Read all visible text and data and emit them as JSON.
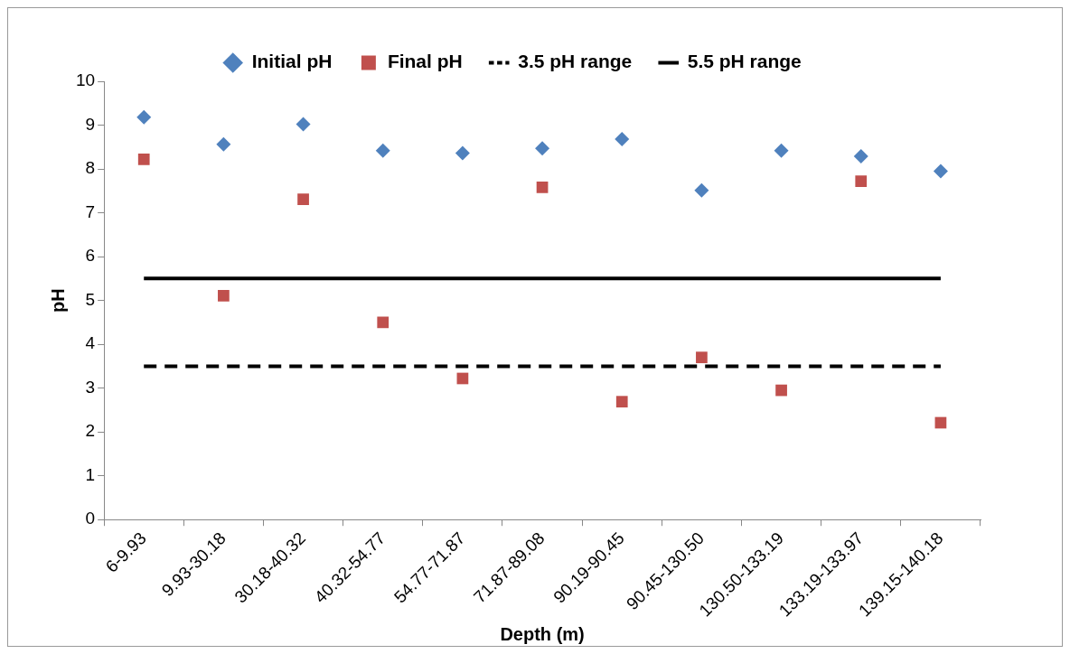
{
  "chart_data": {
    "type": "scatter",
    "xlabel": "Depth (m)",
    "ylabel": "pH",
    "categories": [
      "6-9.93",
      "9.93-30.18",
      "30.18-40.32",
      "40.32-54.77",
      "54.77-71.87",
      "71.87-89.08",
      "90.19-90.45",
      "90.45-130.50",
      "130.50-133.19",
      "133.19-133.97",
      "139.15-140.18"
    ],
    "series": [
      {
        "name": "Initial pH",
        "marker": "diamond",
        "color": "#4f81bd",
        "values": [
          9.18,
          8.56,
          9.02,
          8.42,
          8.36,
          8.47,
          8.68,
          7.51,
          8.42,
          8.29,
          7.95
        ]
      },
      {
        "name": "Final pH",
        "marker": "square",
        "color": "#c0504d",
        "values": [
          8.22,
          5.11,
          7.31,
          4.5,
          3.22,
          7.58,
          2.69,
          3.7,
          2.95,
          7.72,
          2.21
        ]
      },
      {
        "name": "3.5 pH range",
        "type": "line",
        "marker": "none",
        "line_style": "dashed",
        "color": "#000000",
        "values": [
          3.5,
          3.5,
          3.5,
          3.5,
          3.5,
          3.5,
          3.5,
          3.5,
          3.5,
          3.5,
          3.5
        ]
      },
      {
        "name": "5.5 pH range",
        "type": "line",
        "marker": "none",
        "line_style": "solid",
        "color": "#000000",
        "values": [
          5.5,
          5.5,
          5.5,
          5.5,
          5.5,
          5.5,
          5.5,
          5.5,
          5.5,
          5.5,
          5.5
        ]
      }
    ],
    "ylim": [
      0,
      10
    ],
    "yticks": [
      0,
      1,
      2,
      3,
      4,
      5,
      6,
      7,
      8,
      9,
      10
    ],
    "grid": false,
    "legend": "top"
  }
}
